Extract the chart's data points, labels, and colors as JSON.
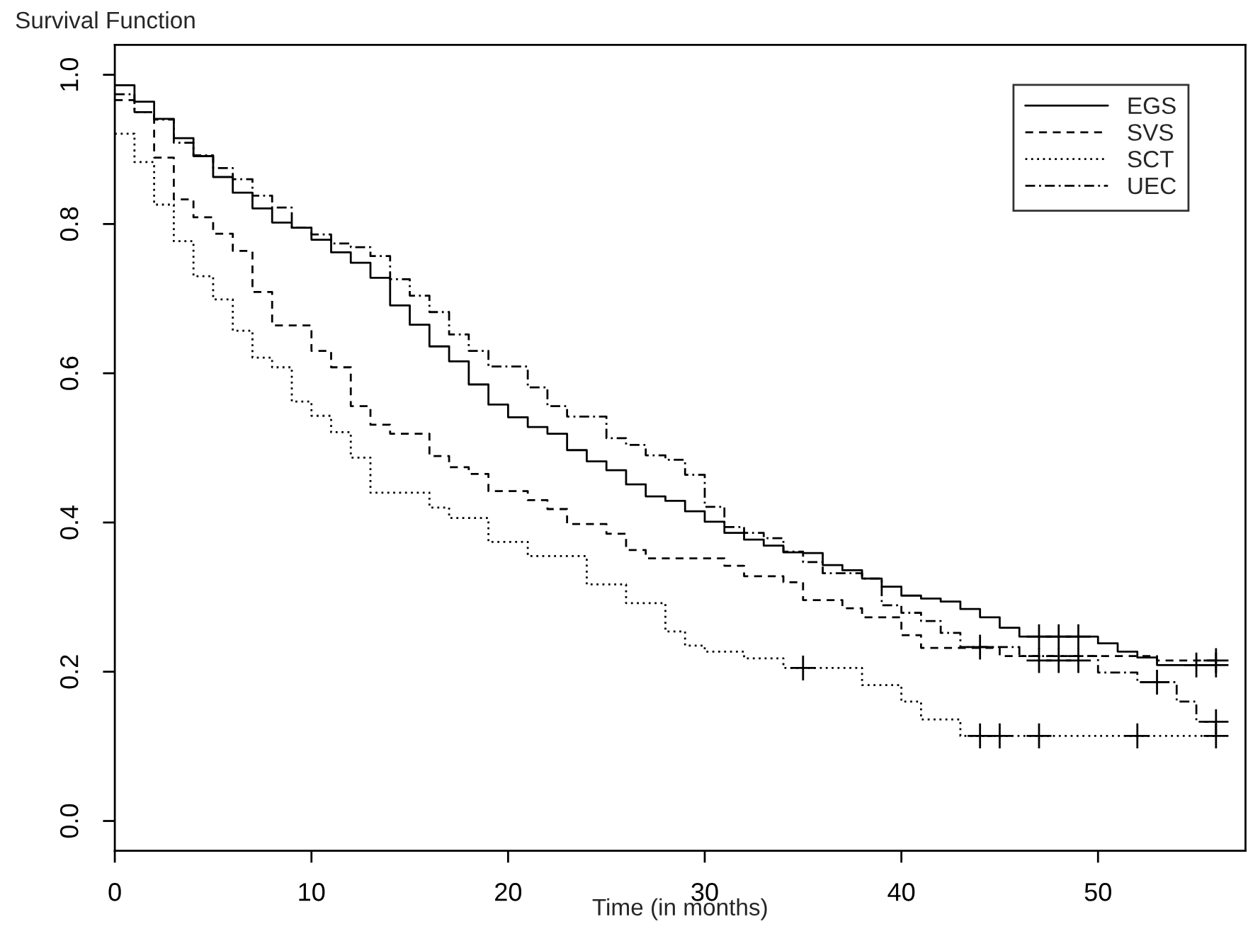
{
  "chart_data": {
    "type": "step",
    "title": "Survival Function",
    "xlabel": "Time (in months)",
    "xlim": [
      0,
      57.5
    ],
    "ylim": [
      -0.04,
      1.04
    ],
    "xticks": [
      0,
      10,
      20,
      30,
      40,
      50
    ],
    "yticks": [
      {
        "value": 0.0,
        "label": "0.0"
      },
      {
        "value": 0.2,
        "label": "0.2"
      },
      {
        "value": 0.4,
        "label": "0.4"
      },
      {
        "value": 0.6,
        "label": "0.6"
      },
      {
        "value": 0.8,
        "label": "0.8"
      },
      {
        "value": 1.0,
        "label": "1.0"
      }
    ],
    "grid": false,
    "legend": "top right",
    "marker": "none",
    "series": [
      {
        "name": "EGS",
        "color": "#000000",
        "line_style": "solid",
        "x": [
          0,
          1,
          2,
          3,
          4,
          5,
          6,
          7,
          8,
          9,
          10,
          11,
          12,
          13,
          14,
          15,
          16,
          17,
          18,
          19,
          20,
          21,
          22,
          23,
          24,
          25,
          26,
          27,
          28,
          29,
          30,
          31,
          32,
          33,
          34,
          35,
          36,
          37,
          38,
          39,
          40,
          41,
          42,
          43,
          44,
          45,
          46,
          50,
          51,
          52,
          53,
          56
        ],
        "values": [
          0.986,
          0.964,
          0.941,
          0.915,
          0.891,
          0.863,
          0.842,
          0.821,
          0.802,
          0.795,
          0.779,
          0.762,
          0.748,
          0.728,
          0.691,
          0.665,
          0.636,
          0.616,
          0.585,
          0.558,
          0.541,
          0.528,
          0.519,
          0.497,
          0.482,
          0.47,
          0.451,
          0.435,
          0.429,
          0.415,
          0.401,
          0.386,
          0.377,
          0.369,
          0.36,
          0.359,
          0.343,
          0.336,
          0.325,
          0.314,
          0.302,
          0.298,
          0.294,
          0.284,
          0.273,
          0.259,
          0.247,
          0.238,
          0.227,
          0.219,
          0.209,
          0.209
        ]
      },
      {
        "name": "SVS",
        "color": "#000000",
        "line_style": "dashed",
        "x": [
          0,
          1,
          2,
          3,
          4,
          5,
          6,
          7,
          8,
          10,
          11,
          12,
          13,
          14,
          16,
          17,
          18,
          19,
          21,
          22,
          23,
          25,
          26,
          27,
          31,
          32,
          34,
          35,
          37,
          38,
          40,
          41,
          45,
          53,
          56
        ],
        "values": [
          0.966,
          0.95,
          0.889,
          0.833,
          0.809,
          0.787,
          0.764,
          0.709,
          0.664,
          0.63,
          0.608,
          0.556,
          0.531,
          0.519,
          0.489,
          0.474,
          0.465,
          0.442,
          0.43,
          0.418,
          0.398,
          0.385,
          0.363,
          0.352,
          0.342,
          0.328,
          0.32,
          0.296,
          0.285,
          0.273,
          0.249,
          0.232,
          0.221,
          0.215,
          0.215
        ]
      },
      {
        "name": "SCT",
        "color": "#000000",
        "line_style": "dotted",
        "x": [
          0,
          1,
          2,
          3,
          4,
          5,
          6,
          7,
          8,
          9,
          10,
          11,
          12,
          13,
          16,
          17,
          19,
          21,
          24,
          26,
          28,
          29,
          30,
          32,
          34,
          38,
          40,
          41,
          43,
          56
        ],
        "values": [
          0.921,
          0.883,
          0.826,
          0.777,
          0.73,
          0.699,
          0.657,
          0.621,
          0.608,
          0.562,
          0.543,
          0.521,
          0.487,
          0.44,
          0.42,
          0.406,
          0.374,
          0.355,
          0.317,
          0.292,
          0.254,
          0.235,
          0.227,
          0.218,
          0.205,
          0.182,
          0.16,
          0.136,
          0.114,
          0.114
        ]
      },
      {
        "name": "UEC",
        "color": "#000000",
        "line_style": "dashdot",
        "x": [
          0,
          1,
          2,
          3,
          4,
          5,
          6,
          7,
          8,
          9,
          10,
          11,
          12,
          13,
          14,
          15,
          16,
          17,
          18,
          19,
          21,
          22,
          23,
          25,
          26,
          27,
          28,
          29,
          30,
          31,
          32,
          33,
          34,
          35,
          36,
          38,
          39,
          40,
          41,
          42,
          43,
          46,
          50,
          52,
          54,
          55,
          56
        ],
        "values": [
          0.974,
          0.95,
          0.94,
          0.909,
          0.892,
          0.875,
          0.86,
          0.838,
          0.822,
          0.795,
          0.786,
          0.774,
          0.769,
          0.757,
          0.726,
          0.704,
          0.682,
          0.652,
          0.63,
          0.609,
          0.581,
          0.556,
          0.542,
          0.513,
          0.504,
          0.49,
          0.484,
          0.464,
          0.421,
          0.394,
          0.386,
          0.379,
          0.361,
          0.347,
          0.332,
          0.325,
          0.289,
          0.279,
          0.268,
          0.252,
          0.233,
          0.221,
          0.199,
          0.186,
          0.16,
          0.133,
          0.133
        ]
      },
      {
        "type": "scatter",
        "marker": "cross",
        "color": "#000000",
        "x": [
          47,
          48,
          49,
          55,
          56
        ],
        "values": [
          0.247,
          0.247,
          0.247,
          0.209,
          0.209
        ]
      },
      {
        "type": "scatter",
        "marker": "cross",
        "color": "#000000",
        "x": [
          47,
          48,
          49,
          56
        ],
        "values": [
          0.215,
          0.215,
          0.215,
          0.215
        ]
      },
      {
        "type": "scatter",
        "marker": "cross",
        "color": "#000000",
        "x": [
          35,
          44,
          45,
          47,
          52,
          56
        ],
        "values": [
          0.205,
          0.114,
          0.114,
          0.114,
          0.114,
          0.114
        ]
      },
      {
        "type": "scatter",
        "marker": "cross",
        "color": "#000000",
        "x": [
          44,
          53,
          56
        ],
        "values": [
          0.233,
          0.186,
          0.133
        ]
      }
    ]
  }
}
